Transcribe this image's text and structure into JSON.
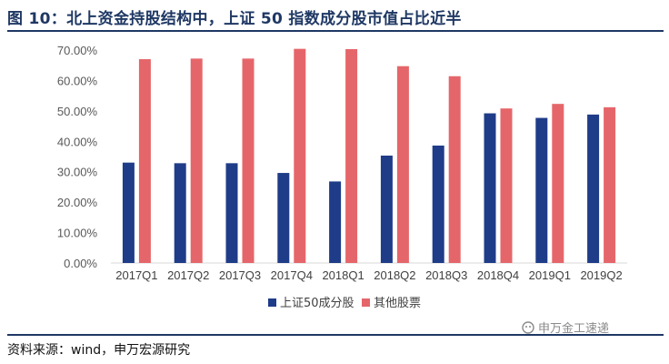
{
  "header": {
    "title": "图 10：北上资金持股结构中，上证 50 指数成分股市值占比近半"
  },
  "footer": {
    "source": "资料来源：wind，申万宏源研究",
    "watermark": "申万金工速递"
  },
  "colors": {
    "series1": "#1f3c88",
    "series2": "#e5666a",
    "title": "#1f3864"
  },
  "chart_data": {
    "type": "bar",
    "title": "",
    "xlabel": "",
    "ylabel": "",
    "ylim": [
      0,
      70
    ],
    "yticks": [
      "0.00%",
      "10.00%",
      "20.00%",
      "30.00%",
      "40.00%",
      "50.00%",
      "60.00%",
      "70.00%"
    ],
    "grid": false,
    "legend_position": "bottom-center",
    "categories": [
      "2017Q1",
      "2017Q2",
      "2017Q3",
      "2017Q4",
      "2018Q1",
      "2018Q2",
      "2018Q3",
      "2018Q4",
      "2019Q1",
      "2019Q2"
    ],
    "series": [
      {
        "name": "上证50成分股",
        "color": "#1f3c88",
        "values": [
          33.0,
          32.8,
          32.8,
          29.6,
          26.8,
          35.3,
          38.6,
          49.2,
          47.7,
          48.8
        ]
      },
      {
        "name": "其他股票",
        "color": "#e5666a",
        "values": [
          67.0,
          67.2,
          67.2,
          70.4,
          70.3,
          64.7,
          61.4,
          50.8,
          52.3,
          51.2
        ]
      }
    ]
  }
}
